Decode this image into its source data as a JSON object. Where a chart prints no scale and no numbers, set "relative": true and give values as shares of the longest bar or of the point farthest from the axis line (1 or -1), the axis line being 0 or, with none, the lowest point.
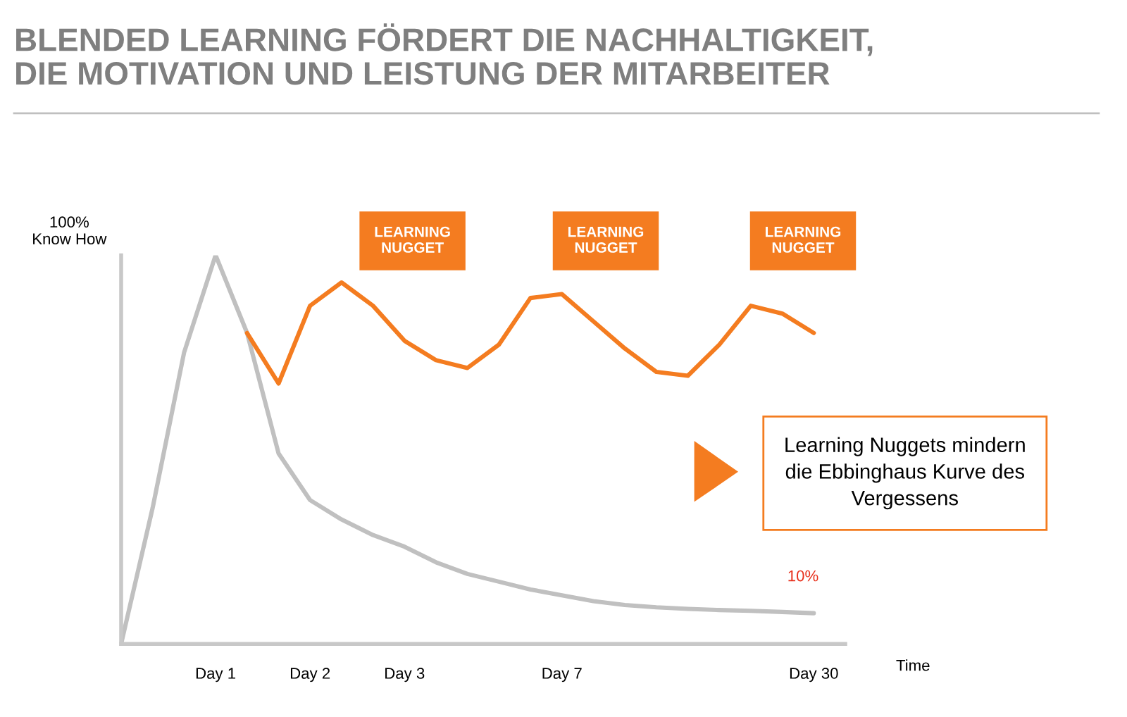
{
  "chart_data": {
    "type": "line",
    "relative": true,
    "title": "BLENDED LEARNING FÖRDERT DIE NACHHALTIGKEIT,\nDIE MOTIVATION UND LEISTUNG DER MITARBEITER",
    "ylabel": "100%\nKnow How",
    "xlabel": "Time",
    "categories": [
      null,
      null,
      null,
      "Day 1",
      null,
      null,
      "Day 2",
      null,
      null,
      "Day 3",
      null,
      null,
      null,
      null,
      "Day 7",
      null,
      null,
      null,
      null,
      null,
      null,
      null,
      "Day 30",
      null
    ],
    "grid": false,
    "marker": "none",
    "line_style": "solid",
    "series": [
      {
        "color": "#c0c0c0",
        "values": [
          0,
          0.35,
          0.75,
          1.0,
          0.8,
          0.49,
          0.37,
          0.32,
          0.28,
          0.25,
          0.21,
          0.18,
          0.16,
          0.14,
          0.125,
          0.11,
          0.1,
          0.094,
          0.09,
          0.087,
          0.085,
          0.082,
          0.079,
          null
        ]
      },
      {
        "color": "#f47c20",
        "values": [
          null,
          null,
          null,
          null,
          0.8,
          0.67,
          0.87,
          0.93,
          0.87,
          0.78,
          0.73,
          0.71,
          0.77,
          0.89,
          0.9,
          0.83,
          0.76,
          0.7,
          0.69,
          0.77,
          0.87,
          0.85,
          0.8,
          null
        ]
      }
    ],
    "annotations": [
      "LEARNING\nNUGGET",
      "LEARNING\nNUGGET",
      "LEARNING\nNUGGET",
      "10%",
      "Learning Nuggets mindern\ndie Ebbinghaus Kurve des\nVergessens"
    ]
  }
}
